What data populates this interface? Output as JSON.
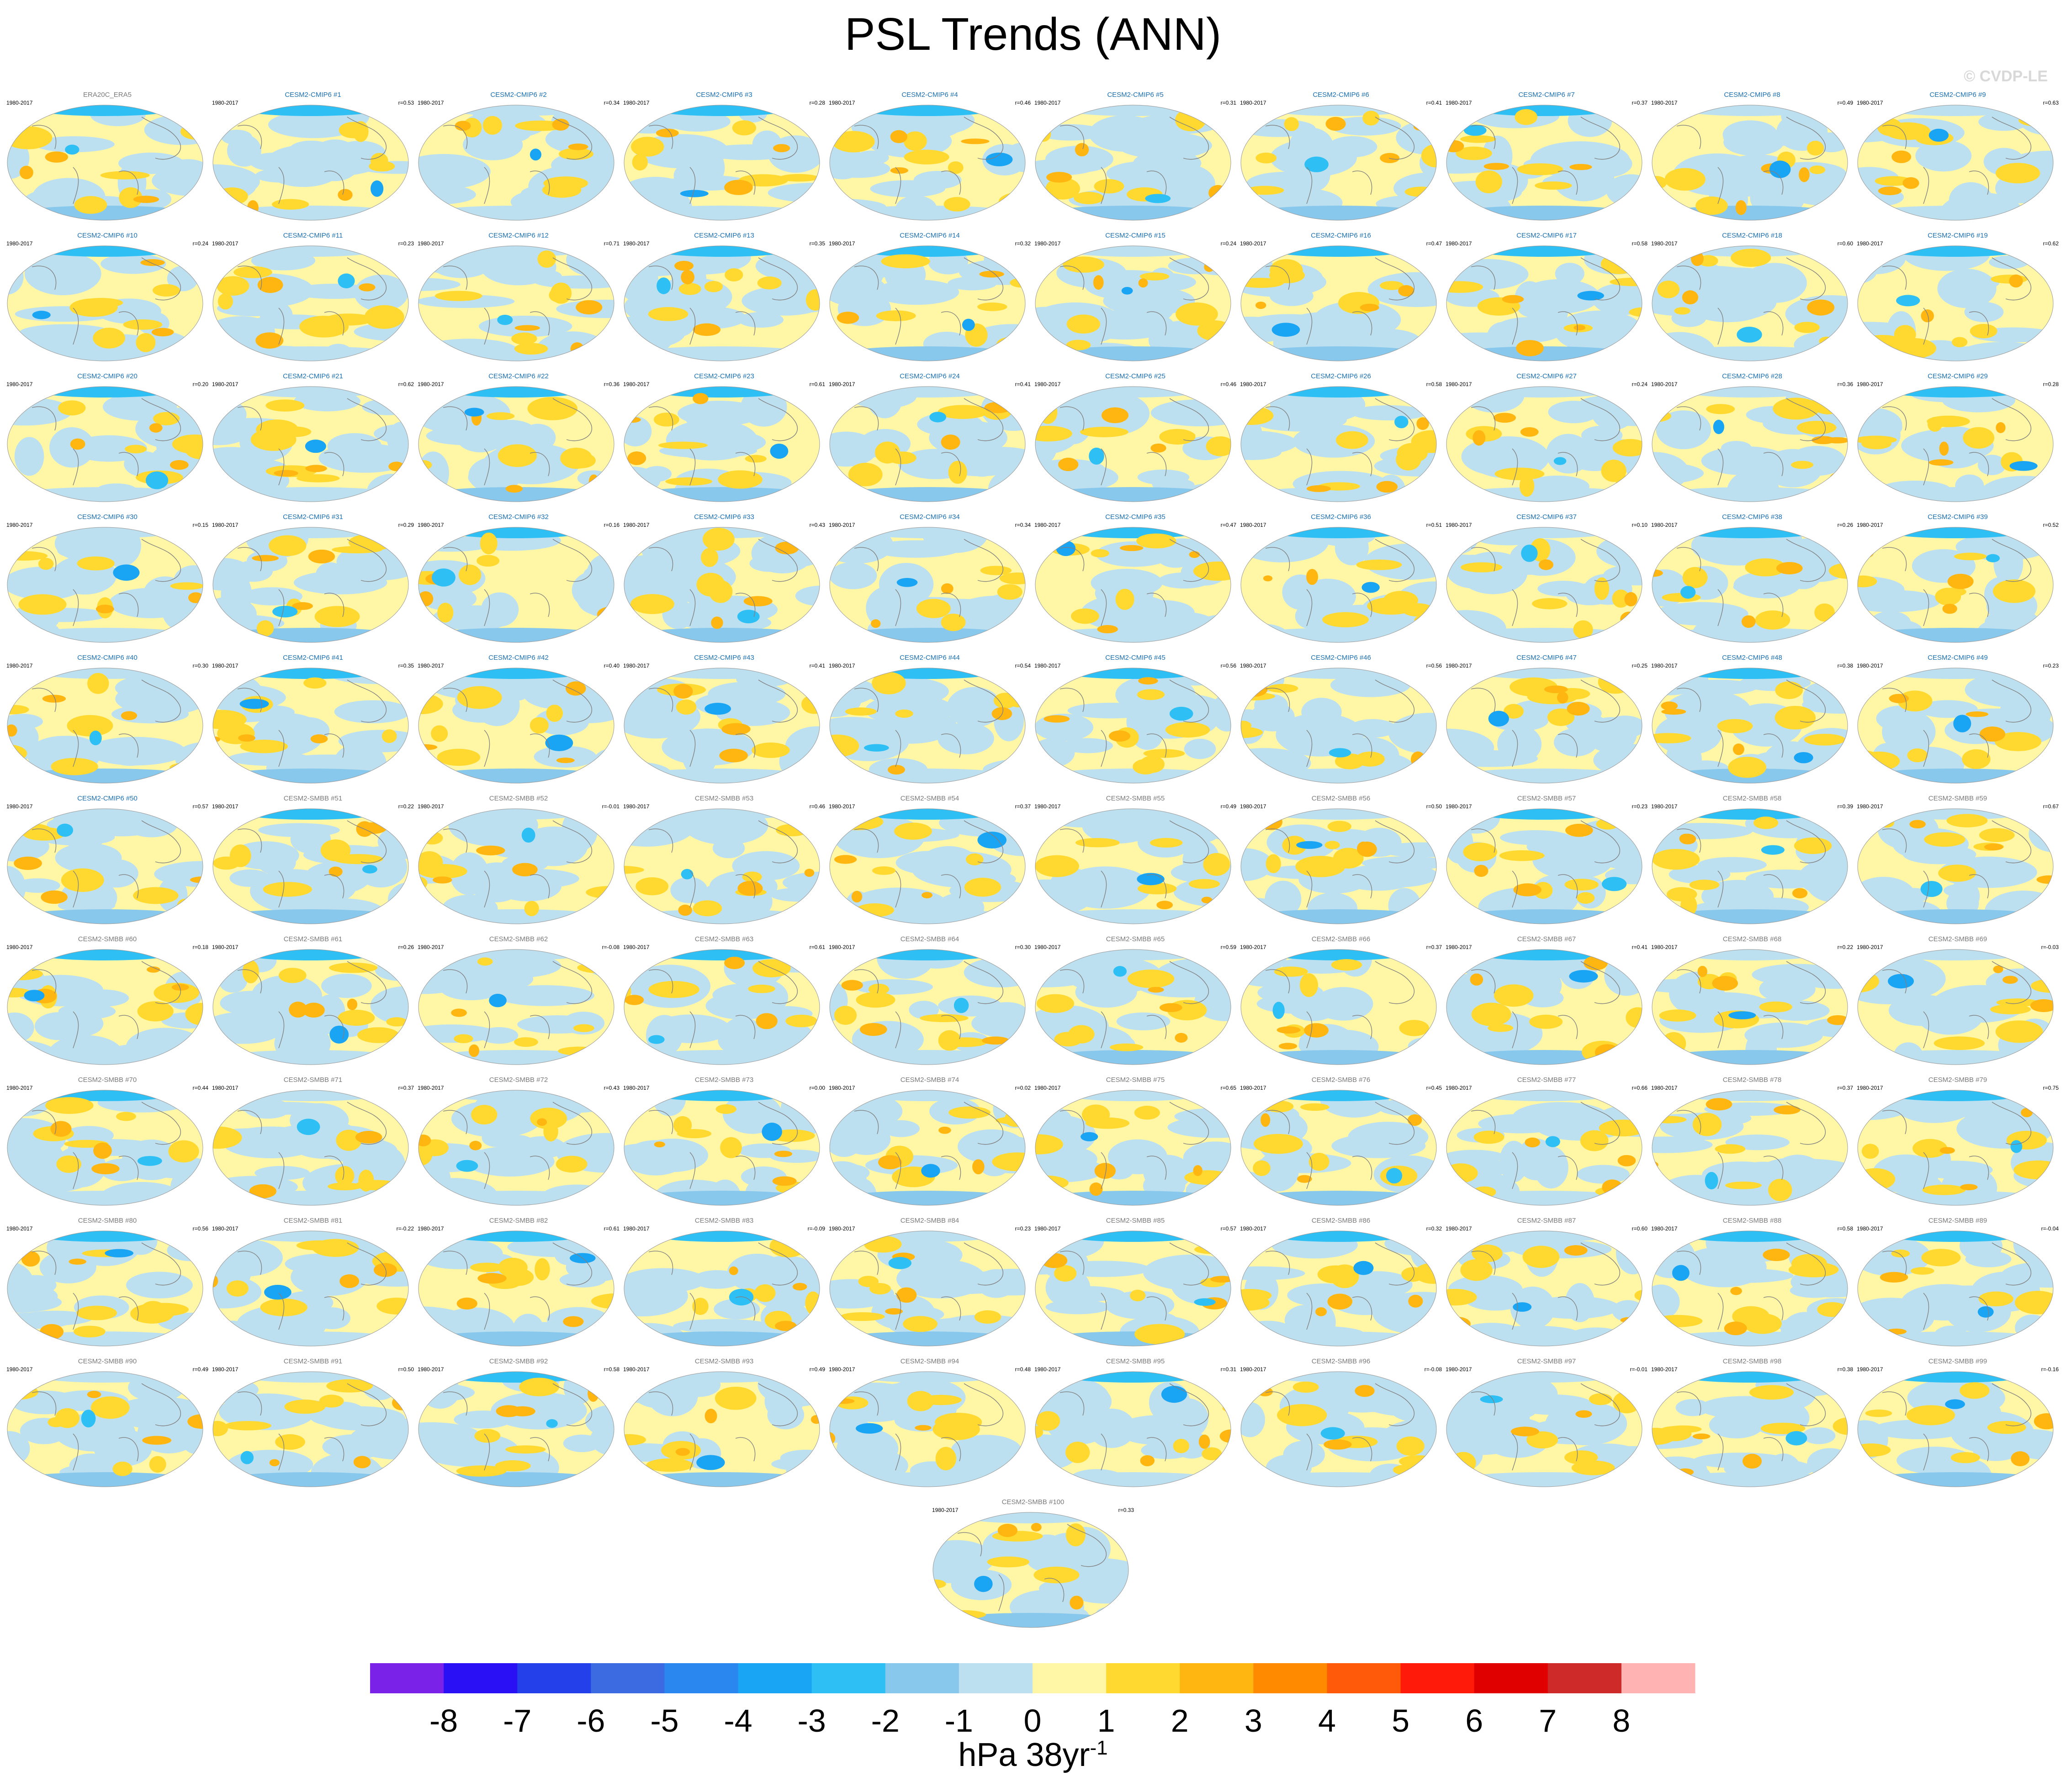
{
  "title": "PSL Trends (ANN)",
  "credit": "© CVDP-LE",
  "period": "1980-2017",
  "panels": [
    {
      "name": "ERA20C_ERA5",
      "group": "obs",
      "r": ""
    },
    {
      "name": "CESM2-CMIP6 #1",
      "group": "cmip6",
      "r": "r=0.53"
    },
    {
      "name": "CESM2-CMIP6 #2",
      "group": "cmip6",
      "r": "r=0.34"
    },
    {
      "name": "CESM2-CMIP6 #3",
      "group": "cmip6",
      "r": "r=0.28"
    },
    {
      "name": "CESM2-CMIP6 #4",
      "group": "cmip6",
      "r": "r=0.46"
    },
    {
      "name": "CESM2-CMIP6 #5",
      "group": "cmip6",
      "r": "r=0.31"
    },
    {
      "name": "CESM2-CMIP6 #6",
      "group": "cmip6",
      "r": "r=0.41"
    },
    {
      "name": "CESM2-CMIP6 #7",
      "group": "cmip6",
      "r": "r=0.37"
    },
    {
      "name": "CESM2-CMIP6 #8",
      "group": "cmip6",
      "r": "r=0.49"
    },
    {
      "name": "CESM2-CMIP6 #9",
      "group": "cmip6",
      "r": "r=0.63"
    },
    {
      "name": "CESM2-CMIP6 #10",
      "group": "cmip6",
      "r": "r=0.24"
    },
    {
      "name": "CESM2-CMIP6 #11",
      "group": "cmip6",
      "r": "r=0.23"
    },
    {
      "name": "CESM2-CMIP6 #12",
      "group": "cmip6",
      "r": "r=0.71"
    },
    {
      "name": "CESM2-CMIP6 #13",
      "group": "cmip6",
      "r": "r=0.35"
    },
    {
      "name": "CESM2-CMIP6 #14",
      "group": "cmip6",
      "r": "r=0.32"
    },
    {
      "name": "CESM2-CMIP6 #15",
      "group": "cmip6",
      "r": "r=0.24"
    },
    {
      "name": "CESM2-CMIP6 #16",
      "group": "cmip6",
      "r": "r=0.47"
    },
    {
      "name": "CESM2-CMIP6 #17",
      "group": "cmip6",
      "r": "r=0.58"
    },
    {
      "name": "CESM2-CMIP6 #18",
      "group": "cmip6",
      "r": "r=0.60"
    },
    {
      "name": "CESM2-CMIP6 #19",
      "group": "cmip6",
      "r": "r=0.62"
    },
    {
      "name": "CESM2-CMIP6 #20",
      "group": "cmip6",
      "r": "r=0.20"
    },
    {
      "name": "CESM2-CMIP6 #21",
      "group": "cmip6",
      "r": "r=0.62"
    },
    {
      "name": "CESM2-CMIP6 #22",
      "group": "cmip6",
      "r": "r=0.36"
    },
    {
      "name": "CESM2-CMIP6 #23",
      "group": "cmip6",
      "r": "r=0.61"
    },
    {
      "name": "CESM2-CMIP6 #24",
      "group": "cmip6",
      "r": "r=0.41"
    },
    {
      "name": "CESM2-CMIP6 #25",
      "group": "cmip6",
      "r": "r=0.46"
    },
    {
      "name": "CESM2-CMIP6 #26",
      "group": "cmip6",
      "r": "r=0.58"
    },
    {
      "name": "CESM2-CMIP6 #27",
      "group": "cmip6",
      "r": "r=0.24"
    },
    {
      "name": "CESM2-CMIP6 #28",
      "group": "cmip6",
      "r": "r=0.36"
    },
    {
      "name": "CESM2-CMIP6 #29",
      "group": "cmip6",
      "r": "r=0.28"
    },
    {
      "name": "CESM2-CMIP6 #30",
      "group": "cmip6",
      "r": "r=0.15"
    },
    {
      "name": "CESM2-CMIP6 #31",
      "group": "cmip6",
      "r": "r=0.29"
    },
    {
      "name": "CESM2-CMIP6 #32",
      "group": "cmip6",
      "r": "r=0.16"
    },
    {
      "name": "CESM2-CMIP6 #33",
      "group": "cmip6",
      "r": "r=0.43"
    },
    {
      "name": "CESM2-CMIP6 #34",
      "group": "cmip6",
      "r": "r=0.34"
    },
    {
      "name": "CESM2-CMIP6 #35",
      "group": "cmip6",
      "r": "r=0.47"
    },
    {
      "name": "CESM2-CMIP6 #36",
      "group": "cmip6",
      "r": "r=0.51"
    },
    {
      "name": "CESM2-CMIP6 #37",
      "group": "cmip6",
      "r": "r=0.10"
    },
    {
      "name": "CESM2-CMIP6 #38",
      "group": "cmip6",
      "r": "r=0.26"
    },
    {
      "name": "CESM2-CMIP6 #39",
      "group": "cmip6",
      "r": "r=0.52"
    },
    {
      "name": "CESM2-CMIP6 #40",
      "group": "cmip6",
      "r": "r=0.30"
    },
    {
      "name": "CESM2-CMIP6 #41",
      "group": "cmip6",
      "r": "r=0.35"
    },
    {
      "name": "CESM2-CMIP6 #42",
      "group": "cmip6",
      "r": "r=0.40"
    },
    {
      "name": "CESM2-CMIP6 #43",
      "group": "cmip6",
      "r": "r=0.41"
    },
    {
      "name": "CESM2-CMIP6 #44",
      "group": "cmip6",
      "r": "r=0.54"
    },
    {
      "name": "CESM2-CMIP6 #45",
      "group": "cmip6",
      "r": "r=0.56"
    },
    {
      "name": "CESM2-CMIP6 #46",
      "group": "cmip6",
      "r": "r=0.56"
    },
    {
      "name": "CESM2-CMIP6 #47",
      "group": "cmip6",
      "r": "r=0.25"
    },
    {
      "name": "CESM2-CMIP6 #48",
      "group": "cmip6",
      "r": "r=0.38"
    },
    {
      "name": "CESM2-CMIP6 #49",
      "group": "cmip6",
      "r": "r=0.23"
    },
    {
      "name": "CESM2-CMIP6 #50",
      "group": "cmip6",
      "r": "r=0.57"
    },
    {
      "name": "CESM2-SMBB #51",
      "group": "smbb",
      "r": "r=0.22"
    },
    {
      "name": "CESM2-SMBB #52",
      "group": "smbb",
      "r": "r=-0.01"
    },
    {
      "name": "CESM2-SMBB #53",
      "group": "smbb",
      "r": "r=0.46"
    },
    {
      "name": "CESM2-SMBB #54",
      "group": "smbb",
      "r": "r=0.37"
    },
    {
      "name": "CESM2-SMBB #55",
      "group": "smbb",
      "r": "r=0.49"
    },
    {
      "name": "CESM2-SMBB #56",
      "group": "smbb",
      "r": "r=0.50"
    },
    {
      "name": "CESM2-SMBB #57",
      "group": "smbb",
      "r": "r=0.23"
    },
    {
      "name": "CESM2-SMBB #58",
      "group": "smbb",
      "r": "r=0.39"
    },
    {
      "name": "CESM2-SMBB #59",
      "group": "smbb",
      "r": "r=0.67"
    },
    {
      "name": "CESM2-SMBB #60",
      "group": "smbb",
      "r": "r=0.18"
    },
    {
      "name": "CESM2-SMBB #61",
      "group": "smbb",
      "r": "r=0.26"
    },
    {
      "name": "CESM2-SMBB #62",
      "group": "smbb",
      "r": "r=-0.08"
    },
    {
      "name": "CESM2-SMBB #63",
      "group": "smbb",
      "r": "r=0.61"
    },
    {
      "name": "CESM2-SMBB #64",
      "group": "smbb",
      "r": "r=0.30"
    },
    {
      "name": "CESM2-SMBB #65",
      "group": "smbb",
      "r": "r=0.59"
    },
    {
      "name": "CESM2-SMBB #66",
      "group": "smbb",
      "r": "r=0.37"
    },
    {
      "name": "CESM2-SMBB #67",
      "group": "smbb",
      "r": "r=0.41"
    },
    {
      "name": "CESM2-SMBB #68",
      "group": "smbb",
      "r": "r=0.22"
    },
    {
      "name": "CESM2-SMBB #69",
      "group": "smbb",
      "r": "r=-0.03"
    },
    {
      "name": "CESM2-SMBB #70",
      "group": "smbb",
      "r": "r=0.44"
    },
    {
      "name": "CESM2-SMBB #71",
      "group": "smbb",
      "r": "r=0.37"
    },
    {
      "name": "CESM2-SMBB #72",
      "group": "smbb",
      "r": "r=0.43"
    },
    {
      "name": "CESM2-SMBB #73",
      "group": "smbb",
      "r": "r=0.00"
    },
    {
      "name": "CESM2-SMBB #74",
      "group": "smbb",
      "r": "r=0.02"
    },
    {
      "name": "CESM2-SMBB #75",
      "group": "smbb",
      "r": "r=0.65"
    },
    {
      "name": "CESM2-SMBB #76",
      "group": "smbb",
      "r": "r=0.45"
    },
    {
      "name": "CESM2-SMBB #77",
      "group": "smbb",
      "r": "r=0.66"
    },
    {
      "name": "CESM2-SMBB #78",
      "group": "smbb",
      "r": "r=0.37"
    },
    {
      "name": "CESM2-SMBB #79",
      "group": "smbb",
      "r": "r=0.75"
    },
    {
      "name": "CESM2-SMBB #80",
      "group": "smbb",
      "r": "r=0.56"
    },
    {
      "name": "CESM2-SMBB #81",
      "group": "smbb",
      "r": "r=-0.22"
    },
    {
      "name": "CESM2-SMBB #82",
      "group": "smbb",
      "r": "r=0.61"
    },
    {
      "name": "CESM2-SMBB #83",
      "group": "smbb",
      "r": "r=-0.09"
    },
    {
      "name": "CESM2-SMBB #84",
      "group": "smbb",
      "r": "r=0.23"
    },
    {
      "name": "CESM2-SMBB #85",
      "group": "smbb",
      "r": "r=0.57"
    },
    {
      "name": "CESM2-SMBB #86",
      "group": "smbb",
      "r": "r=0.32"
    },
    {
      "name": "CESM2-SMBB #87",
      "group": "smbb",
      "r": "r=0.60"
    },
    {
      "name": "CESM2-SMBB #88",
      "group": "smbb",
      "r": "r=0.58"
    },
    {
      "name": "CESM2-SMBB #89",
      "group": "smbb",
      "r": "r=-0.04"
    },
    {
      "name": "CESM2-SMBB #90",
      "group": "smbb",
      "r": "r=0.49"
    },
    {
      "name": "CESM2-SMBB #91",
      "group": "smbb",
      "r": "r=0.50"
    },
    {
      "name": "CESM2-SMBB #92",
      "group": "smbb",
      "r": "r=0.58"
    },
    {
      "name": "CESM2-SMBB #93",
      "group": "smbb",
      "r": "r=0.49"
    },
    {
      "name": "CESM2-SMBB #94",
      "group": "smbb",
      "r": "r=0.48"
    },
    {
      "name": "CESM2-SMBB #95",
      "group": "smbb",
      "r": "r=0.31"
    },
    {
      "name": "CESM2-SMBB #96",
      "group": "smbb",
      "r": "r=-0.08"
    },
    {
      "name": "CESM2-SMBB #97",
      "group": "smbb",
      "r": "r=-0.01"
    },
    {
      "name": "CESM2-SMBB #98",
      "group": "smbb",
      "r": "r=0.38"
    },
    {
      "name": "CESM2-SMBB #99",
      "group": "smbb",
      "r": "r=-0.16"
    },
    {
      "name": "CESM2-SMBB #100",
      "group": "smbb",
      "r": "r=0.33"
    }
  ],
  "chart_data": {
    "type": "heatmap",
    "title": "PSL Trends (ANN)",
    "map_projection": "robinson",
    "colorbar": {
      "units": "hPa 38yr",
      "units_exponent": "-1",
      "levels": [
        "-8",
        "-7",
        "-6",
        "-5",
        "-4",
        "-3",
        "-2",
        "-1",
        "0",
        "1",
        "2",
        "3",
        "4",
        "5",
        "6",
        "7",
        "8"
      ],
      "colors": [
        "#7b22e8",
        "#2a10f5",
        "#2440ea",
        "#3c6ae0",
        "#2b87f0",
        "#1aa4f4",
        "#2ec0f5",
        "#88c8ec",
        "#bde0f0",
        "#fff7a5",
        "#ffd92f",
        "#ffb611",
        "#ff8a00",
        "#ff5a0a",
        "#ff1a0a",
        "#e00000",
        "#cf2a2a",
        "#ffb3b3"
      ]
    },
    "observations_label": "ERA20C_ERA5"
  }
}
